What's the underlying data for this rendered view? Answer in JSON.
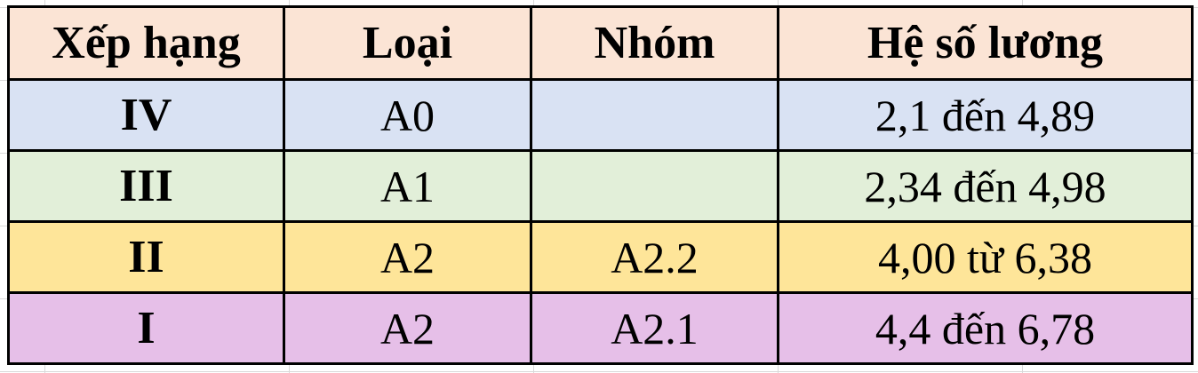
{
  "table": {
    "headers": [
      "Xếp hạng",
      "Loại",
      "Nhóm",
      "Hệ số lương"
    ],
    "header_color": "#fbe4d5",
    "rows": [
      {
        "rank": "IV",
        "type": "A0",
        "group": "",
        "coefficient": "2,1 đến 4,89",
        "color": "#d9e2f3"
      },
      {
        "rank": "III",
        "type": "A1",
        "group": "",
        "coefficient": "2,34 đến 4,98",
        "color": "#e2efd9"
      },
      {
        "rank": "II",
        "type": "A2",
        "group": "A2.2",
        "coefficient": "4,00 từ 6,38",
        "color": "#fee599"
      },
      {
        "rank": "I",
        "type": "A2",
        "group": "A2.1",
        "coefficient": "4,4 đến 6,78",
        "color": "#e6bfe8"
      }
    ]
  }
}
